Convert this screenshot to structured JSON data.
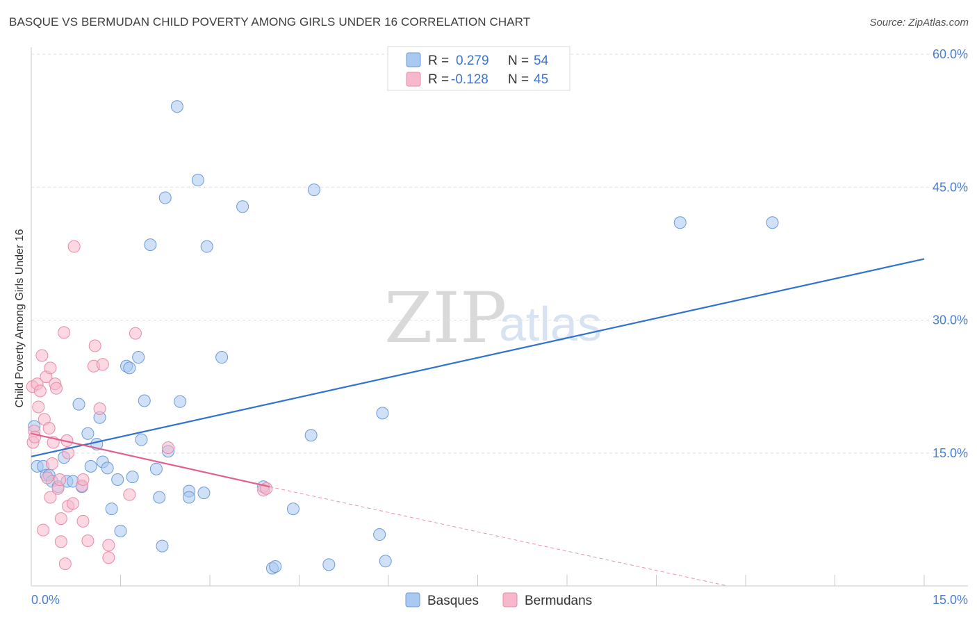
{
  "header": {
    "title": "BASQUE VS BERMUDAN CHILD POVERTY AMONG GIRLS UNDER 16 CORRELATION CHART",
    "source": "Source: ZipAtlas.com"
  },
  "legend": {
    "rows": [
      {
        "r_label": "R =",
        "r_value": "0.279",
        "n_label": "N =",
        "n_value": "54",
        "color": "#a9c9f0"
      },
      {
        "r_label": "R =",
        "r_value": "-0.128",
        "n_label": "N =",
        "n_value": "45",
        "color": "#f7b8cb"
      }
    ]
  },
  "watermark": {
    "zip": "ZIP",
    "atlas": "atlas"
  },
  "bottom_legend": {
    "items": [
      "Basques",
      "Bermudans"
    ]
  },
  "chart_data": {
    "type": "scatter",
    "title": "BASQUE VS BERMUDAN CHILD POVERTY AMONG GIRLS UNDER 16 CORRELATION CHART",
    "xlabel": "",
    "ylabel": "Child Poverty Among Girls Under 16",
    "xlim": [
      0,
      15
    ],
    "ylim": [
      0,
      60
    ],
    "x_tick_labels": [
      "0.0%",
      "15.0%"
    ],
    "y_ticks": [
      15,
      30,
      45,
      60
    ],
    "y_tick_labels": [
      "15.0%",
      "30.0%",
      "45.0%",
      "60.0%"
    ],
    "grid": true,
    "legend_position": "top-center",
    "series": [
      {
        "name": "Basques",
        "color": "#a9c9f0",
        "edge": "#6a9ad8",
        "trend_color": "#2f72d0",
        "trend": {
          "x": [
            0,
            15
          ],
          "y": [
            14.6,
            36.9
          ]
        },
        "points": [
          {
            "x": 0.05,
            "y": 18.0
          },
          {
            "x": 0.1,
            "y": 13.5
          },
          {
            "x": 0.2,
            "y": 13.5
          },
          {
            "x": 0.25,
            "y": 12.5
          },
          {
            "x": 0.3,
            "y": 12.5
          },
          {
            "x": 0.35,
            "y": 11.8
          },
          {
            "x": 0.45,
            "y": 11.2
          },
          {
            "x": 0.55,
            "y": 14.5
          },
          {
            "x": 0.6,
            "y": 11.8
          },
          {
            "x": 0.7,
            "y": 11.8
          },
          {
            "x": 0.8,
            "y": 20.5
          },
          {
            "x": 0.85,
            "y": 11.2
          },
          {
            "x": 0.95,
            "y": 17.2
          },
          {
            "x": 1.0,
            "y": 13.5
          },
          {
            "x": 1.1,
            "y": 16.0
          },
          {
            "x": 1.15,
            "y": 19.0
          },
          {
            "x": 1.2,
            "y": 14.0
          },
          {
            "x": 1.28,
            "y": 13.3
          },
          {
            "x": 1.35,
            "y": 8.7
          },
          {
            "x": 1.45,
            "y": 12.0
          },
          {
            "x": 1.5,
            "y": 6.2
          },
          {
            "x": 1.6,
            "y": 24.8
          },
          {
            "x": 1.65,
            "y": 24.6
          },
          {
            "x": 1.7,
            "y": 12.3
          },
          {
            "x": 1.8,
            "y": 25.8
          },
          {
            "x": 1.85,
            "y": 16.5
          },
          {
            "x": 1.9,
            "y": 20.9
          },
          {
            "x": 2.0,
            "y": 38.5
          },
          {
            "x": 2.1,
            "y": 13.2
          },
          {
            "x": 2.15,
            "y": 10.0
          },
          {
            "x": 2.2,
            "y": 4.5
          },
          {
            "x": 2.25,
            "y": 43.8
          },
          {
            "x": 2.3,
            "y": 15.2
          },
          {
            "x": 2.45,
            "y": 54.1
          },
          {
            "x": 2.5,
            "y": 20.8
          },
          {
            "x": 2.65,
            "y": 10.7
          },
          {
            "x": 2.65,
            "y": 10.0
          },
          {
            "x": 2.8,
            "y": 45.8
          },
          {
            "x": 2.9,
            "y": 10.5
          },
          {
            "x": 2.95,
            "y": 38.3
          },
          {
            "x": 3.2,
            "y": 25.8
          },
          {
            "x": 3.55,
            "y": 42.8
          },
          {
            "x": 3.9,
            "y": 11.2
          },
          {
            "x": 4.05,
            "y": 2.0
          },
          {
            "x": 4.1,
            "y": 2.2
          },
          {
            "x": 4.4,
            "y": 8.7
          },
          {
            "x": 4.7,
            "y": 17.0
          },
          {
            "x": 4.75,
            "y": 44.7
          },
          {
            "x": 5.0,
            "y": 2.4
          },
          {
            "x": 5.85,
            "y": 5.8
          },
          {
            "x": 5.9,
            "y": 19.5
          },
          {
            "x": 5.95,
            "y": 2.8
          },
          {
            "x": 10.9,
            "y": 41.0
          },
          {
            "x": 12.45,
            "y": 41.0
          }
        ]
      },
      {
        "name": "Bermudans",
        "color": "#f7b8cb",
        "edge": "#e88aa6",
        "trend_color": "#e0608e",
        "trend": {
          "x": [
            0,
            4.0
          ],
          "y": [
            17.2,
            11.2
          ]
        },
        "trend_extension": {
          "x": [
            4.0,
            11.7
          ],
          "y": [
            11.2,
            0
          ]
        },
        "points": [
          {
            "x": 0.02,
            "y": 22.5
          },
          {
            "x": 0.03,
            "y": 16.2
          },
          {
            "x": 0.05,
            "y": 17.5
          },
          {
            "x": 0.06,
            "y": 16.8
          },
          {
            "x": 0.1,
            "y": 22.8
          },
          {
            "x": 0.12,
            "y": 20.2
          },
          {
            "x": 0.15,
            "y": 22.0
          },
          {
            "x": 0.18,
            "y": 26.0
          },
          {
            "x": 0.2,
            "y": 6.3
          },
          {
            "x": 0.22,
            "y": 18.8
          },
          {
            "x": 0.25,
            "y": 23.6
          },
          {
            "x": 0.27,
            "y": 12.2
          },
          {
            "x": 0.3,
            "y": 17.8
          },
          {
            "x": 0.32,
            "y": 24.6
          },
          {
            "x": 0.32,
            "y": 10.0
          },
          {
            "x": 0.35,
            "y": 13.8
          },
          {
            "x": 0.37,
            "y": 16.2
          },
          {
            "x": 0.4,
            "y": 22.8
          },
          {
            "x": 0.42,
            "y": 22.3
          },
          {
            "x": 0.45,
            "y": 11.0
          },
          {
            "x": 0.48,
            "y": 12.0
          },
          {
            "x": 0.5,
            "y": 7.6
          },
          {
            "x": 0.5,
            "y": 5.0
          },
          {
            "x": 0.55,
            "y": 28.6
          },
          {
            "x": 0.57,
            "y": 2.5
          },
          {
            "x": 0.6,
            "y": 16.4
          },
          {
            "x": 0.62,
            "y": 15.0
          },
          {
            "x": 0.62,
            "y": 9.0
          },
          {
            "x": 0.7,
            "y": 9.3
          },
          {
            "x": 0.72,
            "y": 38.3
          },
          {
            "x": 0.85,
            "y": 11.3
          },
          {
            "x": 0.87,
            "y": 12.0
          },
          {
            "x": 0.87,
            "y": 7.3
          },
          {
            "x": 0.95,
            "y": 5.1
          },
          {
            "x": 1.05,
            "y": 24.8
          },
          {
            "x": 1.07,
            "y": 27.1
          },
          {
            "x": 1.15,
            "y": 20.0
          },
          {
            "x": 1.2,
            "y": 25.0
          },
          {
            "x": 1.3,
            "y": 4.6
          },
          {
            "x": 1.3,
            "y": 3.2
          },
          {
            "x": 1.65,
            "y": 10.3
          },
          {
            "x": 1.75,
            "y": 28.5
          },
          {
            "x": 2.3,
            "y": 15.6
          },
          {
            "x": 3.9,
            "y": 10.8
          },
          {
            "x": 3.95,
            "y": 11.0
          }
        ]
      }
    ]
  }
}
